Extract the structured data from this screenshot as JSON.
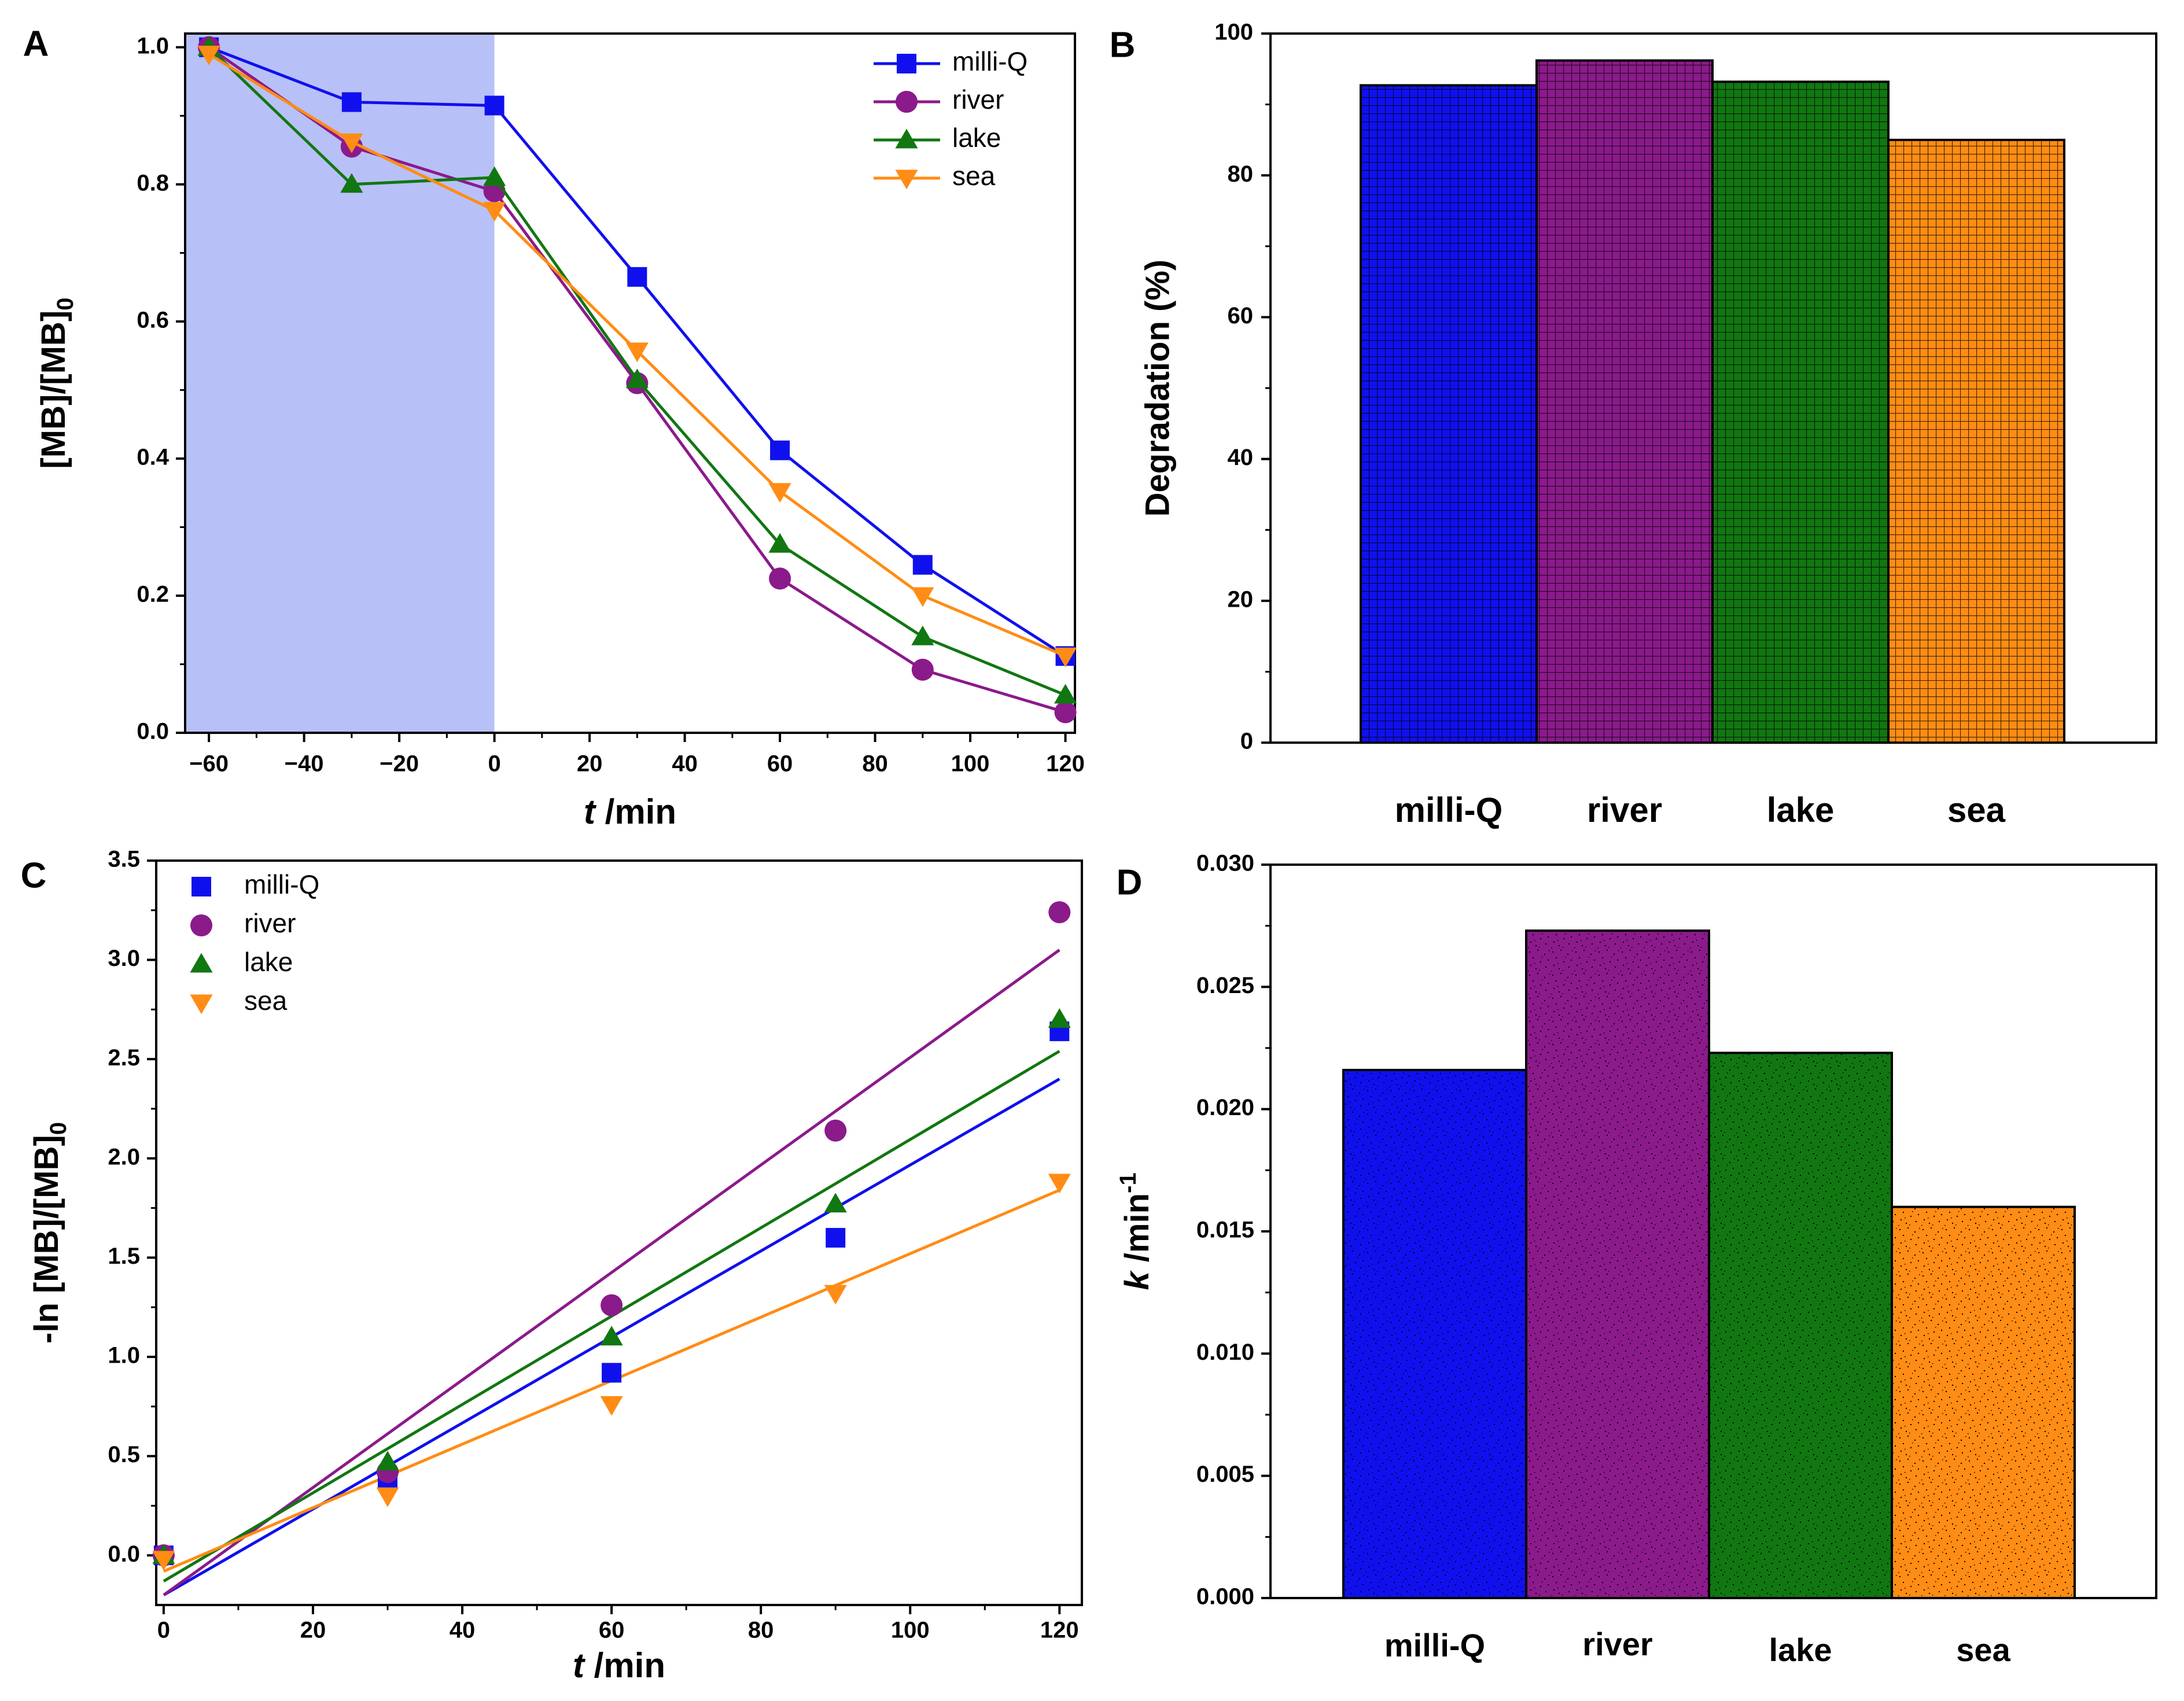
{
  "colors": {
    "milli": "#1010EE",
    "river": "#8B1A8B",
    "lake": "#117711",
    "sea": "#FF8C14",
    "shade": "#B8C0F8",
    "axis": "#000000"
  },
  "chart_data": [
    {
      "id": "A",
      "panel_label": "A",
      "type": "line",
      "xlabel_italic": "t",
      "xlabel_rest": " /min",
      "ylabel_main": "[MB]/[MB]",
      "ylabel_sub": "0",
      "xlim": [
        -65,
        122
      ],
      "ylim": [
        0,
        1.02
      ],
      "xticks": [
        -60,
        -40,
        -20,
        0,
        20,
        40,
        60,
        80,
        100,
        120
      ],
      "xtick_labels": [
        "−60",
        "−40",
        "−20",
        "0",
        "20",
        "40",
        "60",
        "80",
        "100",
        "120"
      ],
      "yticks": [
        0,
        0.2,
        0.4,
        0.6,
        0.8,
        1.0
      ],
      "ytick_labels": [
        "0.0",
        "0.2",
        "0.4",
        "0.6",
        "0.8",
        "1.0"
      ],
      "shaded_range": [
        -65,
        0
      ],
      "x": [
        -60,
        -30,
        0,
        30,
        60,
        90,
        120
      ],
      "legend_position": "top-right",
      "series": [
        {
          "name": "milli-Q",
          "key": "milli",
          "marker": "square",
          "values": [
            1.0,
            0.92,
            0.915,
            0.665,
            0.412,
            0.245,
            0.112
          ]
        },
        {
          "name": "river",
          "key": "river",
          "marker": "circle",
          "values": [
            1.0,
            0.855,
            0.79,
            0.51,
            0.225,
            0.092,
            0.03
          ]
        },
        {
          "name": "lake",
          "key": "lake",
          "marker": "triangle-up",
          "values": [
            1.0,
            0.8,
            0.81,
            0.515,
            0.275,
            0.14,
            0.055
          ]
        },
        {
          "name": "sea",
          "key": "sea",
          "marker": "triangle-down",
          "values": [
            0.99,
            0.862,
            0.762,
            0.557,
            0.352,
            0.2,
            0.112
          ]
        }
      ]
    },
    {
      "id": "B",
      "panel_label": "B",
      "type": "bar",
      "pattern": "grid",
      "ylabel": "Degradation (%)",
      "ylim": [
        0,
        100
      ],
      "yticks": [
        0,
        20,
        40,
        60,
        80,
        100
      ],
      "ytick_labels": [
        "0",
        "20",
        "40",
        "60",
        "80",
        "100"
      ],
      "categories": [
        "milli-Q",
        "river",
        "lake",
        "sea"
      ],
      "keys": [
        "milli",
        "river",
        "lake",
        "sea"
      ],
      "values": [
        92.7,
        96.2,
        93.2,
        85.0
      ]
    },
    {
      "id": "C",
      "panel_label": "C",
      "type": "scatter",
      "xlabel_italic": "t",
      "xlabel_rest": " /min",
      "ylabel_main": "-ln [MB]/[MB]",
      "ylabel_sub": "0",
      "xlim": [
        -1,
        123
      ],
      "ylim": [
        -0.25,
        3.5
      ],
      "xticks": [
        0,
        20,
        40,
        60,
        80,
        100,
        120
      ],
      "xtick_labels": [
        "0",
        "20",
        "40",
        "60",
        "80",
        "100",
        "120"
      ],
      "yticks": [
        0,
        0.5,
        1.0,
        1.5,
        2.0,
        2.5,
        3.0,
        3.5
      ],
      "ytick_labels": [
        "0.0",
        "0.5",
        "1.0",
        "1.5",
        "2.0",
        "2.5",
        "3.0",
        "3.5"
      ],
      "x": [
        0,
        30,
        60,
        90,
        120
      ],
      "legend_position": "top-left",
      "series": [
        {
          "name": "milli-Q",
          "key": "milli",
          "marker": "square",
          "values": [
            0,
            0.39,
            0.92,
            1.6,
            2.64
          ],
          "fit": [
            -0.2,
            2.4
          ]
        },
        {
          "name": "river",
          "key": "river",
          "marker": "circle",
          "values": [
            0,
            0.42,
            1.26,
            2.14,
            3.24
          ],
          "fit": [
            -0.2,
            3.05
          ]
        },
        {
          "name": "lake",
          "key": "lake",
          "marker": "triangle-up",
          "values": [
            0,
            0.47,
            1.1,
            1.77,
            2.7
          ],
          "fit": [
            -0.13,
            2.54
          ]
        },
        {
          "name": "sea",
          "key": "sea",
          "marker": "triangle-down",
          "values": [
            -0.02,
            0.3,
            0.76,
            1.32,
            1.88
          ],
          "fit": [
            -0.08,
            1.84
          ]
        }
      ]
    },
    {
      "id": "D",
      "panel_label": "D",
      "type": "bar",
      "pattern": "speckle",
      "ylabel_italic": "k",
      "ylabel_rest": " /min",
      "ylabel_sup": "-1",
      "ylim": [
        0,
        0.03
      ],
      "yticks": [
        0,
        0.005,
        0.01,
        0.015,
        0.02,
        0.025,
        0.03
      ],
      "ytick_labels": [
        "0.000",
        "0.005",
        "0.010",
        "0.015",
        "0.020",
        "0.025",
        "0.030"
      ],
      "categories": [
        "milli-Q",
        "river",
        "lake",
        "sea"
      ],
      "keys": [
        "milli",
        "river",
        "lake",
        "sea"
      ],
      "values": [
        0.0216,
        0.0273,
        0.0223,
        0.016
      ]
    }
  ]
}
